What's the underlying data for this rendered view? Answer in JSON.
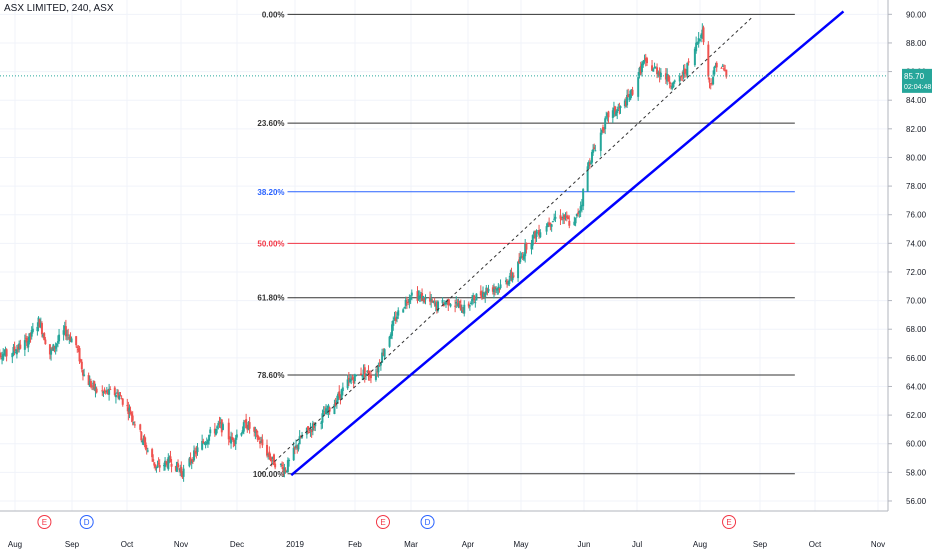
{
  "window": {
    "title": "ASX LIMITED, 240, ASX"
  },
  "price_readout": {
    "last_price": "85.70",
    "countdown": "02:04:48"
  },
  "colors": {
    "up": "#26a69a",
    "down": "#ef5350",
    "trendline": "#0000ff",
    "grid": "#f0f3fa",
    "fib_default": "#333333",
    "fib_382": "#2962ff",
    "fib_50": "#f23645",
    "event_e": "#f23645",
    "event_d": "#2962ff",
    "price_label_bg": "#26a69a",
    "price_line": "#26a69a"
  },
  "chart_data": {
    "type": "candlestick",
    "title": "ASX LIMITED, 240, ASX",
    "ylim": [
      55.3,
      91.0
    ],
    "y_ticks": [
      "56.00",
      "58.00",
      "60.00",
      "62.00",
      "64.00",
      "66.00",
      "68.00",
      "70.00",
      "72.00",
      "74.00",
      "76.00",
      "78.00",
      "80.00",
      "82.00",
      "84.00",
      "86.00",
      "88.00",
      "90.00"
    ],
    "x_ticks": [
      {
        "label": "Aug",
        "date": "2018-08-01"
      },
      {
        "label": "Sep",
        "date": "2018-09-01"
      },
      {
        "label": "Oct",
        "date": "2018-10-01"
      },
      {
        "label": "Nov",
        "date": "2018-11-01"
      },
      {
        "label": "Dec",
        "date": "2018-12-01"
      },
      {
        "label": "2019",
        "date": "2019-01-01"
      },
      {
        "label": "Feb",
        "date": "2019-02-01"
      },
      {
        "label": "Mar",
        "date": "2019-03-01"
      },
      {
        "label": "Apr",
        "date": "2019-04-01"
      },
      {
        "label": "May",
        "date": "2019-05-01"
      },
      {
        "label": "Jun",
        "date": "2019-06-01"
      },
      {
        "label": "Jul",
        "date": "2019-07-01"
      },
      {
        "label": "Aug",
        "date": "2019-08-01"
      },
      {
        "label": "Sep",
        "date": "2019-09-01"
      },
      {
        "label": "Oct",
        "date": "2019-10-01"
      },
      {
        "label": "Nov",
        "date": "2019-11-01"
      }
    ],
    "price_path": [
      [
        "2018-07-20",
        66.5
      ],
      [
        "2018-07-28",
        66.2
      ],
      [
        "2018-08-08",
        67.2
      ],
      [
        "2018-08-14",
        68.6
      ],
      [
        "2018-08-20",
        66.3
      ],
      [
        "2018-08-28",
        67.9
      ],
      [
        "2018-09-03",
        67.0
      ],
      [
        "2018-09-08",
        64.6
      ],
      [
        "2018-09-15",
        63.6
      ],
      [
        "2018-09-26",
        63.5
      ],
      [
        "2018-10-03",
        62.2
      ],
      [
        "2018-10-11",
        60.0
      ],
      [
        "2018-10-18",
        58.3
      ],
      [
        "2018-10-26",
        58.8
      ],
      [
        "2018-11-02",
        58.0
      ],
      [
        "2018-11-10",
        59.6
      ],
      [
        "2018-11-16",
        60.6
      ],
      [
        "2018-11-22",
        61.3
      ],
      [
        "2018-11-28",
        60.2
      ],
      [
        "2018-12-06",
        61.4
      ],
      [
        "2018-12-12",
        60.4
      ],
      [
        "2018-12-20",
        58.8
      ],
      [
        "2018-12-27",
        58.2
      ],
      [
        "2019-01-04",
        60.4
      ],
      [
        "2019-01-11",
        61.3
      ],
      [
        "2019-01-20",
        62.6
      ],
      [
        "2019-01-28",
        64.2
      ],
      [
        "2019-02-04",
        65.0
      ],
      [
        "2019-02-11",
        64.8
      ],
      [
        "2019-02-16",
        66.8
      ],
      [
        "2019-02-22",
        69.0
      ],
      [
        "2019-03-01",
        70.5
      ],
      [
        "2019-03-07",
        70.2
      ],
      [
        "2019-03-15",
        69.6
      ],
      [
        "2019-03-22",
        70.0
      ],
      [
        "2019-03-30",
        69.4
      ],
      [
        "2019-04-05",
        70.2
      ],
      [
        "2019-04-12",
        70.8
      ],
      [
        "2019-04-20",
        71.0
      ],
      [
        "2019-04-28",
        72.0
      ],
      [
        "2019-05-04",
        74.0
      ],
      [
        "2019-05-12",
        75.2
      ],
      [
        "2019-05-20",
        76.0
      ],
      [
        "2019-05-27",
        75.2
      ],
      [
        "2019-05-31",
        77.0
      ],
      [
        "2019-06-02",
        79.0
      ],
      [
        "2019-06-08",
        81.0
      ],
      [
        "2019-06-15",
        83.0
      ],
      [
        "2019-06-22",
        83.4
      ],
      [
        "2019-06-28",
        84.5
      ],
      [
        "2019-07-04",
        86.6
      ],
      [
        "2019-07-12",
        86.0
      ],
      [
        "2019-07-20",
        85.0
      ],
      [
        "2019-07-27",
        86.6
      ],
      [
        "2019-08-02",
        89.0
      ],
      [
        "2019-08-06",
        85.0
      ],
      [
        "2019-08-10",
        86.8
      ],
      [
        "2019-08-15",
        85.7
      ]
    ],
    "fibonacci": {
      "range": {
        "start": "2018-12-28",
        "end": "2019-09-20"
      },
      "levels": [
        {
          "label": "0.00%",
          "price": 90.0,
          "style": "default"
        },
        {
          "label": "23.60%",
          "price": 82.4,
          "style": "default"
        },
        {
          "label": "38.20%",
          "price": 77.6,
          "style": "blue"
        },
        {
          "label": "50.00%",
          "price": 74.0,
          "style": "red"
        },
        {
          "label": "61.80%",
          "price": 70.2,
          "style": "default"
        },
        {
          "label": "78.60%",
          "price": 64.8,
          "style": "default"
        },
        {
          "label": "100.00%",
          "price": 57.9,
          "style": "default"
        }
      ]
    },
    "trendline": {
      "start": [
        "2018-12-30",
        57.8
      ],
      "end": [
        "2019-10-15",
        90.2
      ]
    },
    "dashed_line": {
      "start": [
        "2018-12-14",
        57.9
      ],
      "end": [
        "2019-08-28",
        89.8
      ]
    },
    "events": [
      {
        "label": "E",
        "date": "2018-08-17",
        "type": "earnings"
      },
      {
        "label": "D",
        "date": "2018-09-09",
        "type": "dividend"
      },
      {
        "label": "E",
        "date": "2019-02-15",
        "type": "earnings"
      },
      {
        "label": "D",
        "date": "2019-03-10",
        "type": "dividend"
      },
      {
        "label": "E",
        "date": "2019-08-16",
        "type": "earnings"
      }
    ]
  }
}
